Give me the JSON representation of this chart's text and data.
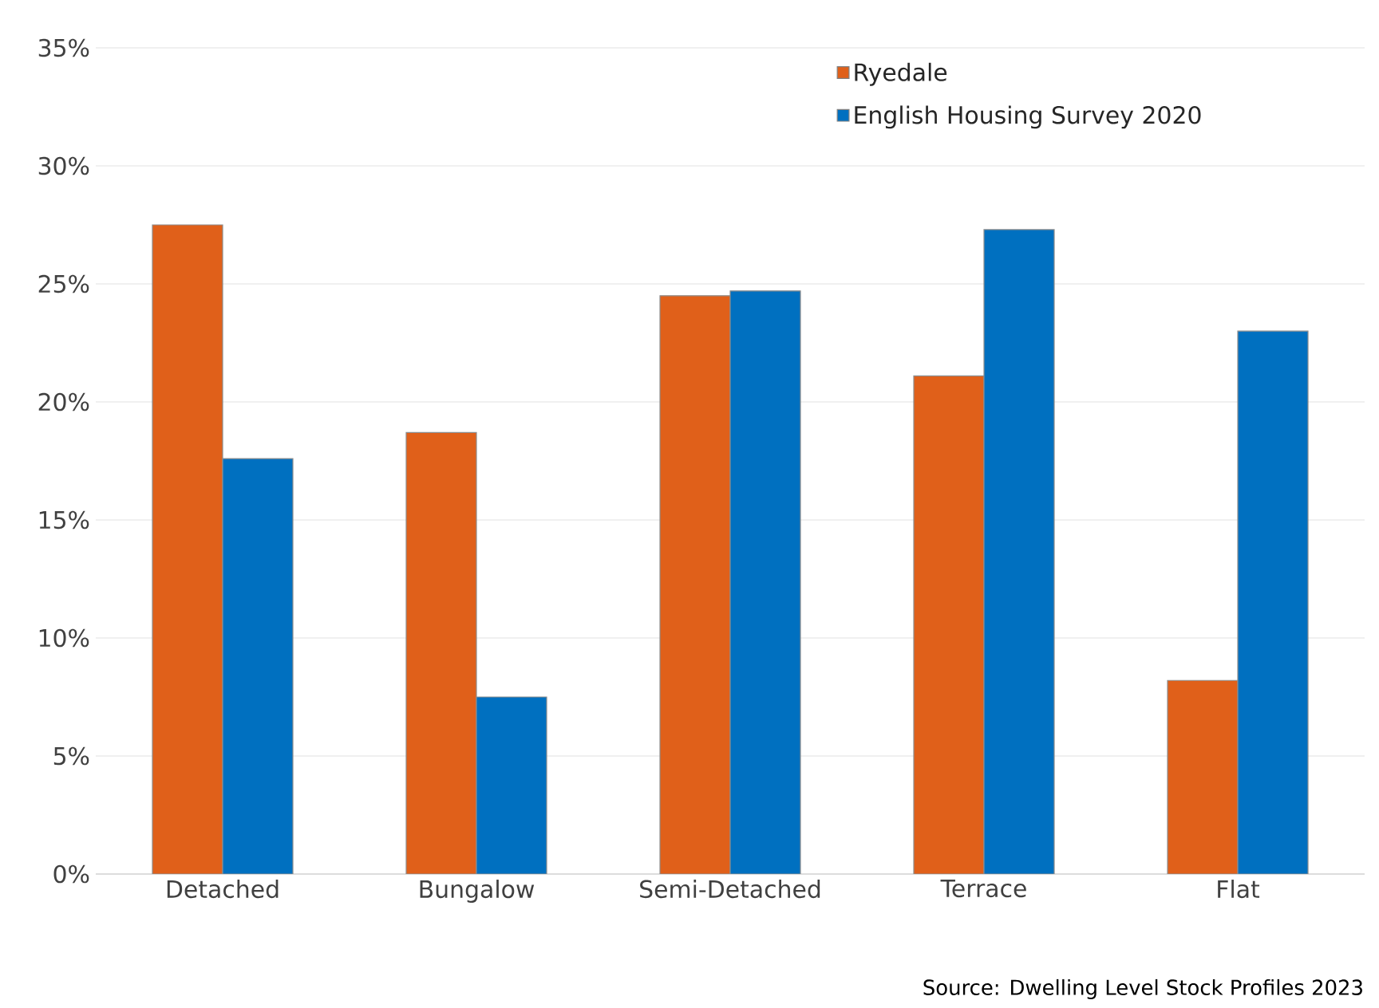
{
  "chart_data": {
    "type": "bar",
    "categories": [
      "Detached",
      "Bungalow",
      "Semi-Detached",
      "Terrace",
      "Flat"
    ],
    "series": [
      {
        "name": "Ryedale",
        "color": "#e0601a",
        "values": [
          27.5,
          18.7,
          24.5,
          21.1,
          8.2
        ]
      },
      {
        "name": "English Housing Survey 2020",
        "color": "#0070c0",
        "values": [
          17.6,
          7.5,
          24.7,
          27.3,
          23.0
        ]
      }
    ],
    "ylim": [
      0,
      35
    ],
    "yticks": [
      {
        "value": 0,
        "label": "0%"
      },
      {
        "value": 5,
        "label": "5%"
      },
      {
        "value": 10,
        "label": "10%"
      },
      {
        "value": 15,
        "label": "15%"
      },
      {
        "value": 20,
        "label": "20%"
      },
      {
        "value": 25,
        "label": "25%"
      },
      {
        "value": 30,
        "label": "30%"
      },
      {
        "value": 35,
        "label": "35%"
      }
    ],
    "grid": "y",
    "legend": "top right",
    "annotations": [
      "Source: Dwelling Level Stock Profiles 2023"
    ]
  }
}
